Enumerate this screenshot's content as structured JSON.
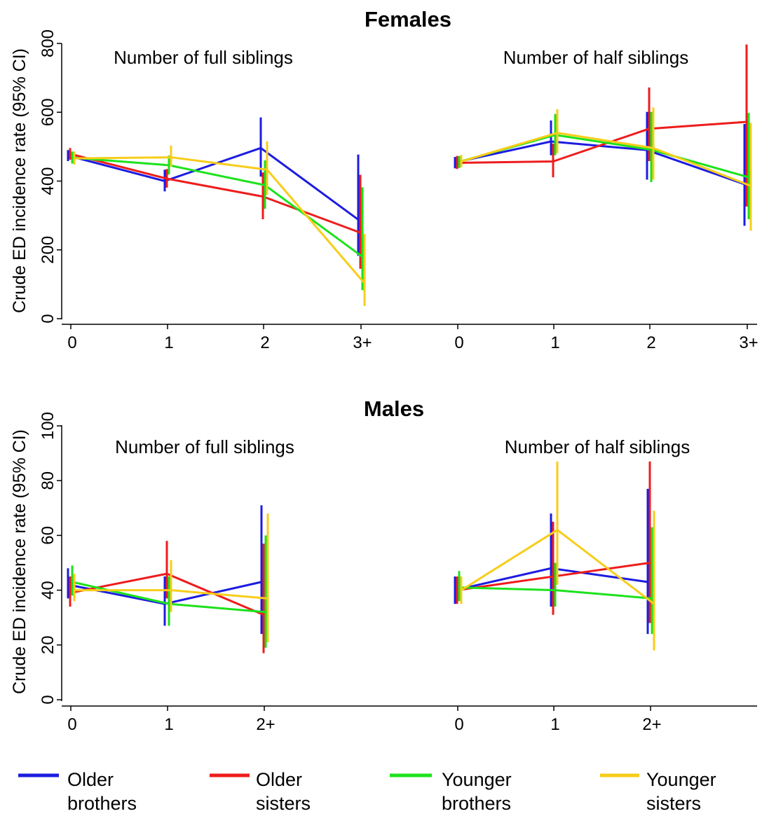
{
  "chart_data": [
    {
      "type": "line",
      "title": "Females",
      "ylabel": "Crude ED incidence rate (95% CI)",
      "ylim": [
        0,
        800
      ],
      "yticks": [
        0,
        200,
        400,
        600,
        800
      ],
      "grid": false,
      "panels": [
        {
          "label": "Number of full siblings",
          "categories": [
            "0",
            "1",
            "2",
            "3+"
          ],
          "series": [
            {
              "name": "Older brothers",
              "values": [
                474,
                400,
                496,
                288
              ],
              "ci_low": [
                458,
                370,
                413,
                183
              ],
              "ci_high": [
                490,
                433,
                585,
                477
              ]
            },
            {
              "name": "Older sisters",
              "values": [
                479,
                407,
                355,
                250
              ],
              "ci_low": [
                462,
                381,
                289,
                145
              ],
              "ci_high": [
                496,
                435,
                425,
                418
              ]
            },
            {
              "name": "Younger brothers",
              "values": [
                468,
                446,
                388,
                180
              ],
              "ci_low": [
                451,
                419,
                319,
                83
              ],
              "ci_high": [
                486,
                474,
                460,
                382
              ]
            },
            {
              "name": "Younger sisters",
              "values": [
                466,
                469,
                433,
                103
              ],
              "ci_low": [
                448,
                442,
                360,
                37
              ],
              "ci_high": [
                486,
                503,
                515,
                246
              ]
            }
          ]
        },
        {
          "label": "Number of half siblings",
          "categories": [
            "0",
            "1",
            "2",
            "3+"
          ],
          "series": [
            {
              "name": "Older brothers",
              "values": [
                454,
                515,
                490,
                391
              ],
              "ci_low": [
                437,
                475,
                404,
                270
              ],
              "ci_high": [
                470,
                576,
                601,
                566
              ]
            },
            {
              "name": "Older sisters",
              "values": [
                453,
                457,
                552,
                572
              ],
              "ci_low": [
                435,
                411,
                458,
                326
              ],
              "ci_high": [
                473,
                509,
                672,
                797
              ]
            },
            {
              "name": "Younger brothers",
              "values": [
                456,
                534,
                491,
                411
              ],
              "ci_low": [
                438,
                475,
                397,
                289
              ],
              "ci_high": [
                473,
                595,
                601,
                598
              ]
            },
            {
              "name": "Younger sisters",
              "values": [
                457,
                540,
                496,
                386
              ],
              "ci_low": [
                440,
                481,
                404,
                256
              ],
              "ci_high": [
                476,
                609,
                614,
                569
              ]
            }
          ]
        }
      ]
    },
    {
      "type": "line",
      "title": "Males",
      "ylabel": "Crude ED incidence rate (95% CI)",
      "ylim": [
        0,
        100
      ],
      "yticks": [
        0,
        20,
        40,
        60,
        80,
        100
      ],
      "grid": false,
      "panels": [
        {
          "label": "Number of full siblings",
          "categories": [
            "0",
            "1",
            "2+"
          ],
          "series": [
            {
              "name": "Older brothers",
              "values": [
                42,
                35,
                43
              ],
              "ci_low": [
                37,
                27,
                24
              ],
              "ci_high": [
                48,
                45,
                71
              ]
            },
            {
              "name": "Older sisters",
              "values": [
                39,
                46,
                31
              ],
              "ci_low": [
                34,
                37,
                17
              ],
              "ci_high": [
                45,
                58,
                57
              ]
            },
            {
              "name": "Younger brothers",
              "values": [
                43,
                35,
                32
              ],
              "ci_low": [
                38,
                27,
                19
              ],
              "ci_high": [
                49,
                45,
                60
              ]
            },
            {
              "name": "Younger sisters",
              "values": [
                40,
                40,
                37
              ],
              "ci_low": [
                36,
                32,
                21
              ],
              "ci_high": [
                46,
                51,
                68
              ]
            }
          ]
        },
        {
          "label": "Number of half siblings",
          "categories": [
            "0",
            "1",
            "2+"
          ],
          "series": [
            {
              "name": "Older brothers",
              "values": [
                40,
                48,
                43
              ],
              "ci_low": [
                35,
                34,
                24
              ],
              "ci_high": [
                45,
                68,
                77
              ]
            },
            {
              "name": "Older sisters",
              "values": [
                40,
                45,
                50
              ],
              "ci_low": [
                35,
                31,
                28
              ],
              "ci_high": [
                45,
                65,
                87
              ]
            },
            {
              "name": "Younger brothers",
              "values": [
                41,
                40,
                37
              ],
              "ci_low": [
                36,
                34,
                24
              ],
              "ci_high": [
                47,
                50,
                63
              ]
            },
            {
              "name": "Younger sisters",
              "values": [
                40,
                62,
                35
              ],
              "ci_low": [
                35,
                42,
                18
              ],
              "ci_high": [
                45,
                87,
                69
              ]
            }
          ]
        }
      ]
    }
  ],
  "legend": {
    "placement": "bottom",
    "items": [
      {
        "line1": "Older",
        "line2": "brothers",
        "color": "#1c1ce0"
      },
      {
        "line1": "Older",
        "line2": "sisters",
        "color": "#ee1c1c"
      },
      {
        "line1": "Younger",
        "line2": "brothers",
        "color": "#1ce21c"
      },
      {
        "line1": "Younger",
        "line2": "sisters",
        "color": "#f7cd1a"
      }
    ]
  }
}
